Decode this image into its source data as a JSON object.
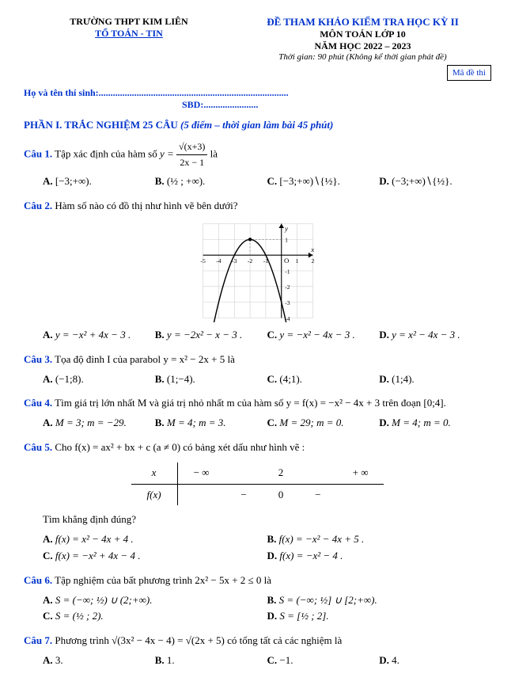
{
  "header": {
    "school": "TRƯỜNG THPT KIM LIÊN",
    "dept": "TỔ TOÁN - TIN",
    "title": "ĐỀ THAM KHẢO KIỂM TRA HỌC KỲ II",
    "subject": "MÔN TOÁN LỚP 10",
    "year": "NĂM HỌC 2022 – 2023",
    "time": "Thời gian: 90 phút (Không kể thời gian phát đề)",
    "code": "Mã đề thi"
  },
  "info": {
    "name": "Họ và tên thí sinh:................................................................................",
    "sbd": "SBD:......................."
  },
  "part1": {
    "title": "PHẦN I. TRẮC NGHIỆM 25 CÂU",
    "note": "(5 điểm – thời gian làm bài 45 phút)"
  },
  "q1": {
    "label": "Câu 1.",
    "text_pre": "Tập xác định của hàm số ",
    "formula": "y =",
    "frac_num": "√(x+3)",
    "frac_den": "2x − 1",
    "text_post": " là",
    "A": "[−3;+∞).",
    "B": "(½ ; +∞).",
    "C": "[−3;+∞)∖{½}.",
    "D": "(−3;+∞)∖{½}."
  },
  "q2": {
    "label": "Câu 2.",
    "text": "Hàm số nào có đồ thị như hình vẽ bên dưới?",
    "A": "y = −x² + 4x − 3 .",
    "B": "y = −2x² − x − 3 .",
    "C": "y = −x² − 4x − 3 .",
    "D": "y = x² − 4x − 3 .",
    "graph": {
      "xlim": [
        -5,
        2
      ],
      "ylim": [
        -4,
        2
      ],
      "xt": [
        -5,
        -4,
        -3,
        -2,
        -1,
        1,
        2
      ],
      "yt": [
        -4,
        -3,
        -2,
        -1,
        1
      ],
      "grid_color": "#cccccc",
      "axis_color": "#000000",
      "curve_color": "#000000",
      "dash_color": "#888888",
      "vertex": [
        -2,
        1
      ],
      "unit": 18
    }
  },
  "q3": {
    "label": "Câu 3.",
    "text": "Tọa độ đỉnh I của parabol y = x² − 2x + 5 là",
    "A": "(−1;8).",
    "B": "(1;−4).",
    "C": "(4;1).",
    "D": "(1;4)."
  },
  "q4": {
    "label": "Câu 4.",
    "text": "Tìm giá trị lớn nhất M và giá trị nhỏ nhất m của hàm số y = f(x) = −x² − 4x + 3 trên đoạn [0;4].",
    "A": "M = 3; m = −29.",
    "B": "M = 4; m = 3.",
    "C": "M = 29; m = 0.",
    "D": "M = 4; m = 0."
  },
  "q5": {
    "label": "Câu 5.",
    "text": "Cho f(x) = ax² + bx + c (a ≠ 0) có bảng xét dấu như hình vẽ :",
    "table": {
      "header": [
        "x",
        "− ∞",
        "",
        "2",
        "",
        "+ ∞"
      ],
      "row": [
        "f(x)",
        "",
        "−",
        "0",
        "−",
        ""
      ]
    },
    "prompt": "Tìm khẳng định đúng?",
    "A": "f(x) = x² − 4x + 4 .",
    "B": "f(x) = −x² − 4x + 5 .",
    "C": "f(x) = −x² + 4x − 4 .",
    "D": "f(x) = −x² − 4 ."
  },
  "q6": {
    "label": "Câu 6.",
    "text": "Tập nghiệm của bất phương trình 2x² − 5x + 2 ≤ 0 là",
    "A": "S = (−∞; ½) ∪ (2;+∞).",
    "B": "S = (−∞; ½] ∪ [2;+∞).",
    "C": "S = (½ ; 2).",
    "D": "S = [½ ; 2]."
  },
  "q7": {
    "label": "Câu 7.",
    "text": "Phương trình √(3x² − 4x − 4) = √(2x + 5) có tổng tất cả các nghiệm là",
    "A": "3.",
    "B": "1.",
    "C": "−1.",
    "D": "4."
  }
}
